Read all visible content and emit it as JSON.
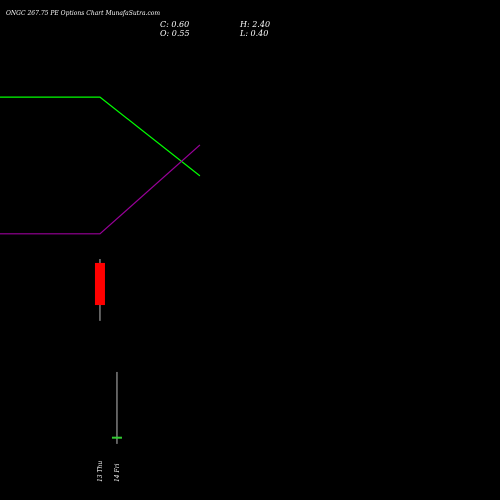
{
  "chart_data": {
    "type": "candlestick",
    "title": "ONGC 267.75 PE Options  Chart MunafaSutra.com",
    "header": {
      "close": "C: 0.60",
      "high": "H: 2.40",
      "open": "O: 0.55",
      "low": "L: 0.40"
    },
    "categories": [
      "13 Thu",
      "14 Fri"
    ],
    "open": [
      5.43,
      0.55
    ],
    "high": [
      5.54,
      2.4
    ],
    "low": [
      3.82,
      0.4
    ],
    "close": [
      4.26,
      0.6
    ],
    "up_color": "#32cd32",
    "down_color": "#ff0000",
    "lines": [
      {
        "color": "#00ff00",
        "x": [
          -5.88,
          0,
          5.88
        ],
        "values": [
          10.04,
          10.04,
          7.85
        ]
      },
      {
        "color": "#990099",
        "x": [
          -5.88,
          0,
          5.88
        ],
        "values": [
          6.24,
          6.24,
          8.71
        ]
      }
    ],
    "xlim": [
      -5.88,
      23.53
    ],
    "ylim": [
      -1.16,
      12.74
    ]
  }
}
